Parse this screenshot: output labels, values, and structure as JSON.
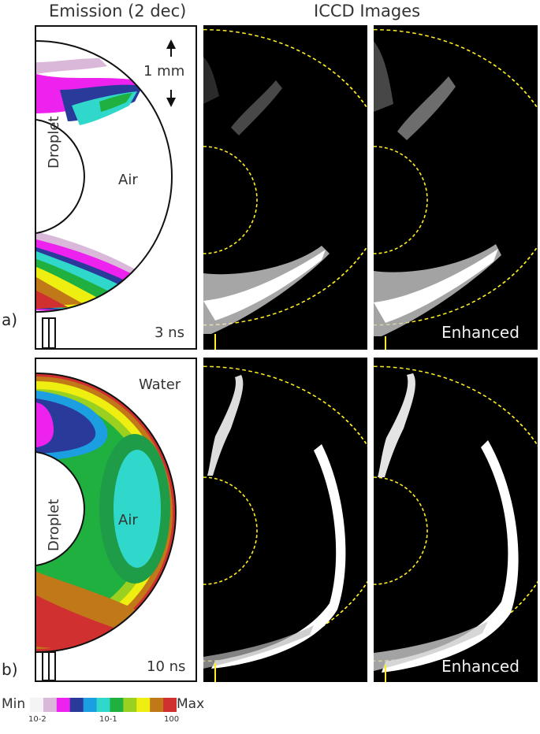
{
  "header": {
    "emission_title": "Emission (2 dec)",
    "iccd_title": "ICCD Images"
  },
  "row_a": {
    "label": "a)",
    "time": "3 ns",
    "scale": "1 mm",
    "droplet": "Droplet",
    "air": "Air",
    "enhanced": "Enhanced"
  },
  "row_b": {
    "label": "b)",
    "time": "10 ns",
    "water": "Water",
    "droplet": "Droplet",
    "air": "Air",
    "enhanced": "Enhanced"
  },
  "colorbar": {
    "min_label": "Min",
    "max_label": "Max",
    "ticks": [
      "10-2",
      "10-1",
      "100"
    ],
    "colors": [
      "#f4f4f4",
      "#d9b8d9",
      "#ee22ee",
      "#2a3a9a",
      "#1c9fe0",
      "#30d8cc",
      "#20b040",
      "#9ad020",
      "#eeee10",
      "#c07818",
      "#d03030"
    ]
  }
}
